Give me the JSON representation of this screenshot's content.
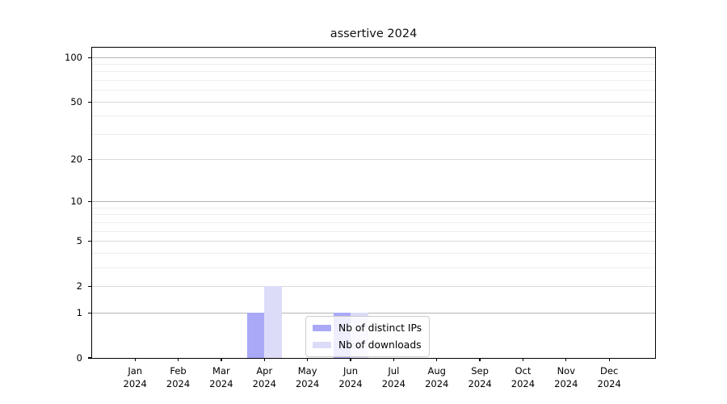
{
  "chart_data": {
    "type": "bar",
    "title": "assertive 2024",
    "categories": [
      "Jan",
      "Feb",
      "Mar",
      "Apr",
      "May",
      "Jun",
      "Jul",
      "Aug",
      "Sep",
      "Oct",
      "Nov",
      "Dec"
    ],
    "category_year": "2024",
    "series": [
      {
        "name": "Nb of distinct IPs",
        "color": "#a9a9f7",
        "values": [
          0,
          0,
          0,
          1,
          0,
          1,
          0,
          0,
          0,
          0,
          0,
          0
        ]
      },
      {
        "name": "Nb of downloads",
        "color": "#dcdcf8",
        "values": [
          0,
          0,
          0,
          2,
          0,
          1,
          0,
          0,
          0,
          0,
          0,
          0
        ]
      }
    ],
    "yscale": "log1p",
    "ylim": [
      0,
      115
    ],
    "y_tick_labels": [
      0,
      1,
      2,
      5,
      10,
      20,
      50,
      100
    ],
    "y_gridlines_strong": [
      1,
      10,
      100
    ],
    "y_gridlines_mid": [
      2,
      5,
      20,
      50
    ],
    "y_gridlines_weak": [
      3,
      4,
      6,
      7,
      8,
      9,
      30,
      40,
      60,
      70,
      80,
      90
    ],
    "grid": "horizontal-only",
    "legend_position": "lower-center-inside",
    "colors": {
      "axis": "#000000",
      "background": "#ffffff",
      "major_grid": "#b4b4b4",
      "mid_grid": "#dadada",
      "minor_grid": "#eeeeee"
    }
  }
}
